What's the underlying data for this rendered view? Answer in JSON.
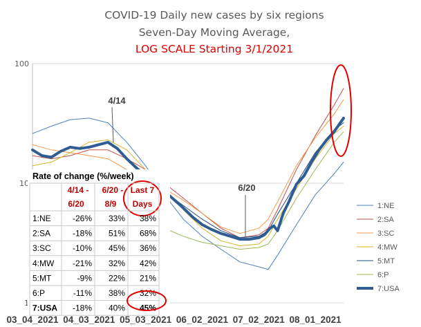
{
  "chart_data": {
    "type": "line",
    "title": "COVID-19 Daily new cases by six regions",
    "subtitle": "Seven-Day Moving Average,",
    "subtitle2": "LOG SCALE Starting 3/1/2021",
    "y_scale": "log",
    "ylim": [
      1,
      100
    ],
    "y_ticks": [
      {
        "value": 1,
        "label": "1"
      },
      {
        "value": 10,
        "label": "10"
      },
      {
        "value": 100,
        "label": "100"
      }
    ],
    "x_tick_labels": [
      "03_04_2021",
      "04_03_2021",
      "05_03_2021",
      "06_02_2021",
      "07_02_2021",
      "08_01_2021"
    ],
    "x_tick_index": [
      0,
      30,
      60,
      90,
      120,
      150
    ],
    "x_index_range": [
      0,
      165
    ],
    "series": [
      {
        "name": "1:NE",
        "color": "#4f81bd",
        "width": 1,
        "points": [
          [
            0,
            26
          ],
          [
            10,
            30
          ],
          [
            20,
            34
          ],
          [
            30,
            35
          ],
          [
            40,
            32
          ],
          [
            50,
            22
          ],
          [
            60,
            14
          ],
          [
            70,
            8
          ],
          [
            80,
            5
          ],
          [
            90,
            3.6
          ],
          [
            100,
            2.8
          ],
          [
            110,
            2.2
          ],
          [
            120,
            2
          ],
          [
            125,
            1.9
          ],
          [
            130,
            2.5
          ],
          [
            140,
            4.5
          ],
          [
            150,
            8
          ],
          [
            160,
            12
          ],
          [
            165,
            15
          ]
        ]
      },
      {
        "name": "2:SA",
        "color": "#c0504d",
        "width": 1,
        "points": [
          [
            0,
            17
          ],
          [
            10,
            16
          ],
          [
            20,
            17
          ],
          [
            30,
            19
          ],
          [
            40,
            19
          ],
          [
            50,
            16
          ],
          [
            60,
            13
          ],
          [
            70,
            10
          ],
          [
            80,
            7.5
          ],
          [
            90,
            5.6
          ],
          [
            100,
            4.2
          ],
          [
            110,
            3.5
          ],
          [
            120,
            3.7
          ],
          [
            125,
            4.2
          ],
          [
            130,
            6
          ],
          [
            140,
            13
          ],
          [
            150,
            25
          ],
          [
            160,
            45
          ],
          [
            165,
            62
          ]
        ]
      },
      {
        "name": "3:SC",
        "color": "#f79646",
        "width": 1,
        "points": [
          [
            0,
            21
          ],
          [
            10,
            19
          ],
          [
            20,
            18
          ],
          [
            30,
            17
          ],
          [
            40,
            16
          ],
          [
            50,
            13
          ],
          [
            60,
            11
          ],
          [
            70,
            9
          ],
          [
            80,
            7.2
          ],
          [
            90,
            5.6
          ],
          [
            100,
            4.3
          ],
          [
            110,
            3.8
          ],
          [
            120,
            4.2
          ],
          [
            125,
            5
          ],
          [
            130,
            7
          ],
          [
            140,
            14
          ],
          [
            150,
            24
          ],
          [
            160,
            38
          ],
          [
            165,
            50
          ]
        ]
      },
      {
        "name": "4:MW",
        "color": "#d4b32a",
        "width": 1,
        "points": [
          [
            0,
            14
          ],
          [
            10,
            15
          ],
          [
            20,
            18
          ],
          [
            30,
            22
          ],
          [
            40,
            23
          ],
          [
            50,
            19
          ],
          [
            60,
            13
          ],
          [
            70,
            9
          ],
          [
            80,
            6
          ],
          [
            90,
            4.2
          ],
          [
            100,
            3.3
          ],
          [
            110,
            3
          ],
          [
            120,
            3.1
          ],
          [
            125,
            3.6
          ],
          [
            130,
            5
          ],
          [
            140,
            9
          ],
          [
            150,
            16
          ],
          [
            160,
            26
          ],
          [
            165,
            30
          ]
        ]
      },
      {
        "name": "5:MT",
        "color": "#1f497d",
        "width": 1,
        "points": [
          [
            0,
            13
          ],
          [
            10,
            11
          ],
          [
            20,
            10
          ],
          [
            30,
            10
          ],
          [
            40,
            11
          ],
          [
            50,
            10.5
          ],
          [
            60,
            10
          ],
          [
            70,
            8.5
          ],
          [
            80,
            6.5
          ],
          [
            90,
            5
          ],
          [
            100,
            4
          ],
          [
            110,
            3.5
          ],
          [
            120,
            3.6
          ],
          [
            125,
            4
          ],
          [
            130,
            5.5
          ],
          [
            140,
            10
          ],
          [
            150,
            18
          ],
          [
            160,
            28
          ],
          [
            165,
            32
          ]
        ]
      },
      {
        "name": "6:P",
        "color": "#9bbb59",
        "width": 1,
        "points": [
          [
            0,
            9
          ],
          [
            10,
            8
          ],
          [
            20,
            7.5
          ],
          [
            30,
            7.2
          ],
          [
            40,
            7
          ],
          [
            50,
            6
          ],
          [
            60,
            5
          ],
          [
            70,
            4.2
          ],
          [
            80,
            3.6
          ],
          [
            90,
            3.2
          ],
          [
            100,
            3
          ],
          [
            110,
            2.8
          ],
          [
            120,
            2.9
          ],
          [
            125,
            3.1
          ],
          [
            130,
            4
          ],
          [
            140,
            7.5
          ],
          [
            150,
            13
          ],
          [
            160,
            22
          ],
          [
            165,
            27
          ]
        ]
      },
      {
        "name": "7:USA",
        "color": "#2e5c93",
        "width": 4,
        "points": [
          [
            0,
            19
          ],
          [
            5,
            17
          ],
          [
            10,
            16.5
          ],
          [
            15,
            18.5
          ],
          [
            20,
            20
          ],
          [
            25,
            19.5
          ],
          [
            30,
            20
          ],
          [
            35,
            21
          ],
          [
            40,
            22
          ],
          [
            45,
            19.5
          ],
          [
            50,
            16
          ],
          [
            55,
            13.5
          ],
          [
            60,
            11.5
          ],
          [
            65,
            10
          ],
          [
            70,
            8.6
          ],
          [
            75,
            7.3
          ],
          [
            80,
            6.2
          ],
          [
            85,
            5.2
          ],
          [
            90,
            4.5
          ],
          [
            95,
            4.1
          ],
          [
            100,
            3.8
          ],
          [
            105,
            3.6
          ],
          [
            110,
            3.4
          ],
          [
            115,
            3.4
          ],
          [
            120,
            3.5
          ],
          [
            123,
            3.7
          ],
          [
            126,
            4.2
          ],
          [
            128,
            4.4
          ],
          [
            130,
            4
          ],
          [
            133,
            5.6
          ],
          [
            136,
            7
          ],
          [
            140,
            9.8
          ],
          [
            144,
            11.5
          ],
          [
            148,
            15
          ],
          [
            152,
            19
          ],
          [
            156,
            23
          ],
          [
            160,
            27
          ],
          [
            165,
            35
          ]
        ]
      }
    ],
    "annotations": [
      "4/14",
      "6/20"
    ]
  },
  "rate_table": {
    "title": "Rate of change (%/week)",
    "headers": [
      [
        "4/14 -",
        "6/20"
      ],
      [
        "6/20 -",
        "8/9"
      ],
      [
        "Last 7",
        "Days"
      ]
    ],
    "rows": [
      {
        "region": "1:NE",
        "c1": "-26%",
        "c2": "33%",
        "c3": "38%"
      },
      {
        "region": "2:SA",
        "c1": "-18%",
        "c2": "51%",
        "c3": "68%"
      },
      {
        "region": "3:SC",
        "c1": "-10%",
        "c2": "45%",
        "c3": "36%"
      },
      {
        "region": "4:MW",
        "c1": "-21%",
        "c2": "32%",
        "c3": "42%"
      },
      {
        "region": "5:MT",
        "c1": "-9%",
        "c2": "22%",
        "c3": "21%"
      },
      {
        "region": "6:P",
        "c1": "-11%",
        "c2": "38%",
        "c3": "32%"
      },
      {
        "region": "7:USA",
        "c1": "-18%",
        "c2": "40%",
        "c3": "45%"
      }
    ]
  },
  "colors": {
    "highlight_ring": "#e00000",
    "gridline": "#d9d9d9"
  }
}
